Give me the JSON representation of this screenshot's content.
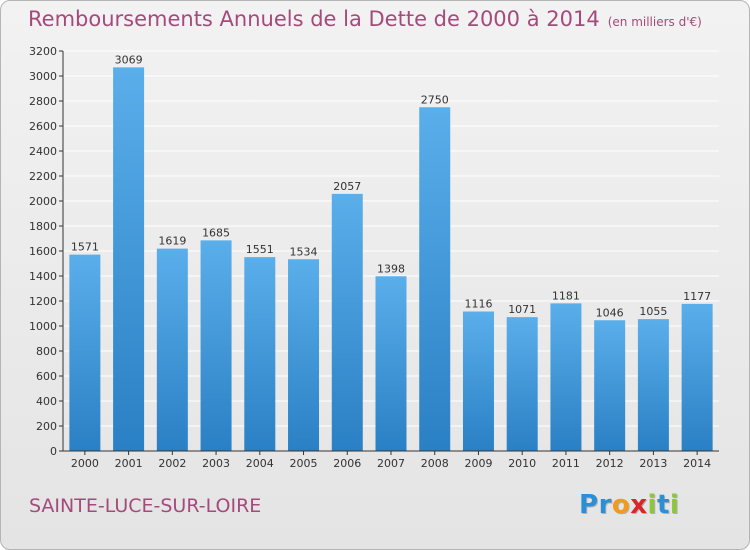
{
  "title": "Remboursements Annuels de la Dette de 2000 à 2014",
  "unit": "(en milliers d'€)",
  "commune": "SAINTE-LUCE-SUR-LOIRE",
  "brand": "Proxiti",
  "brand_letters": [
    {
      "char": "P",
      "color": "#2a8fd6"
    },
    {
      "char": "r",
      "color": "#2a8fd6"
    },
    {
      "char": "o",
      "color": "#f39a1e"
    },
    {
      "char": "x",
      "color": "#d9262b"
    },
    {
      "char": "i",
      "color": "#8cc63f"
    },
    {
      "char": "t",
      "color": "#2a8fd6"
    },
    {
      "char": "i",
      "color": "#8cc63f"
    }
  ],
  "colors": {
    "title": "#a54a7c",
    "bar_top": "#5aaeea",
    "bar_bottom": "#2a80c4",
    "axis": "#333333",
    "grid": "#ffffff"
  },
  "chart_data": {
    "type": "bar",
    "categories": [
      "2000",
      "2001",
      "2002",
      "2003",
      "2004",
      "2005",
      "2006",
      "2007",
      "2008",
      "2009",
      "2010",
      "2011",
      "2012",
      "2013",
      "2014"
    ],
    "values": [
      1571,
      3069,
      1619,
      1685,
      1551,
      1534,
      2057,
      1398,
      2750,
      1116,
      1071,
      1181,
      1046,
      1055,
      1177
    ],
    "ylim": [
      0,
      3200
    ],
    "yticks": [
      0,
      200,
      400,
      600,
      800,
      1000,
      1200,
      1400,
      1600,
      1800,
      2000,
      2200,
      2400,
      2600,
      2800,
      3000,
      3200
    ],
    "grid": true,
    "legend": "none"
  }
}
